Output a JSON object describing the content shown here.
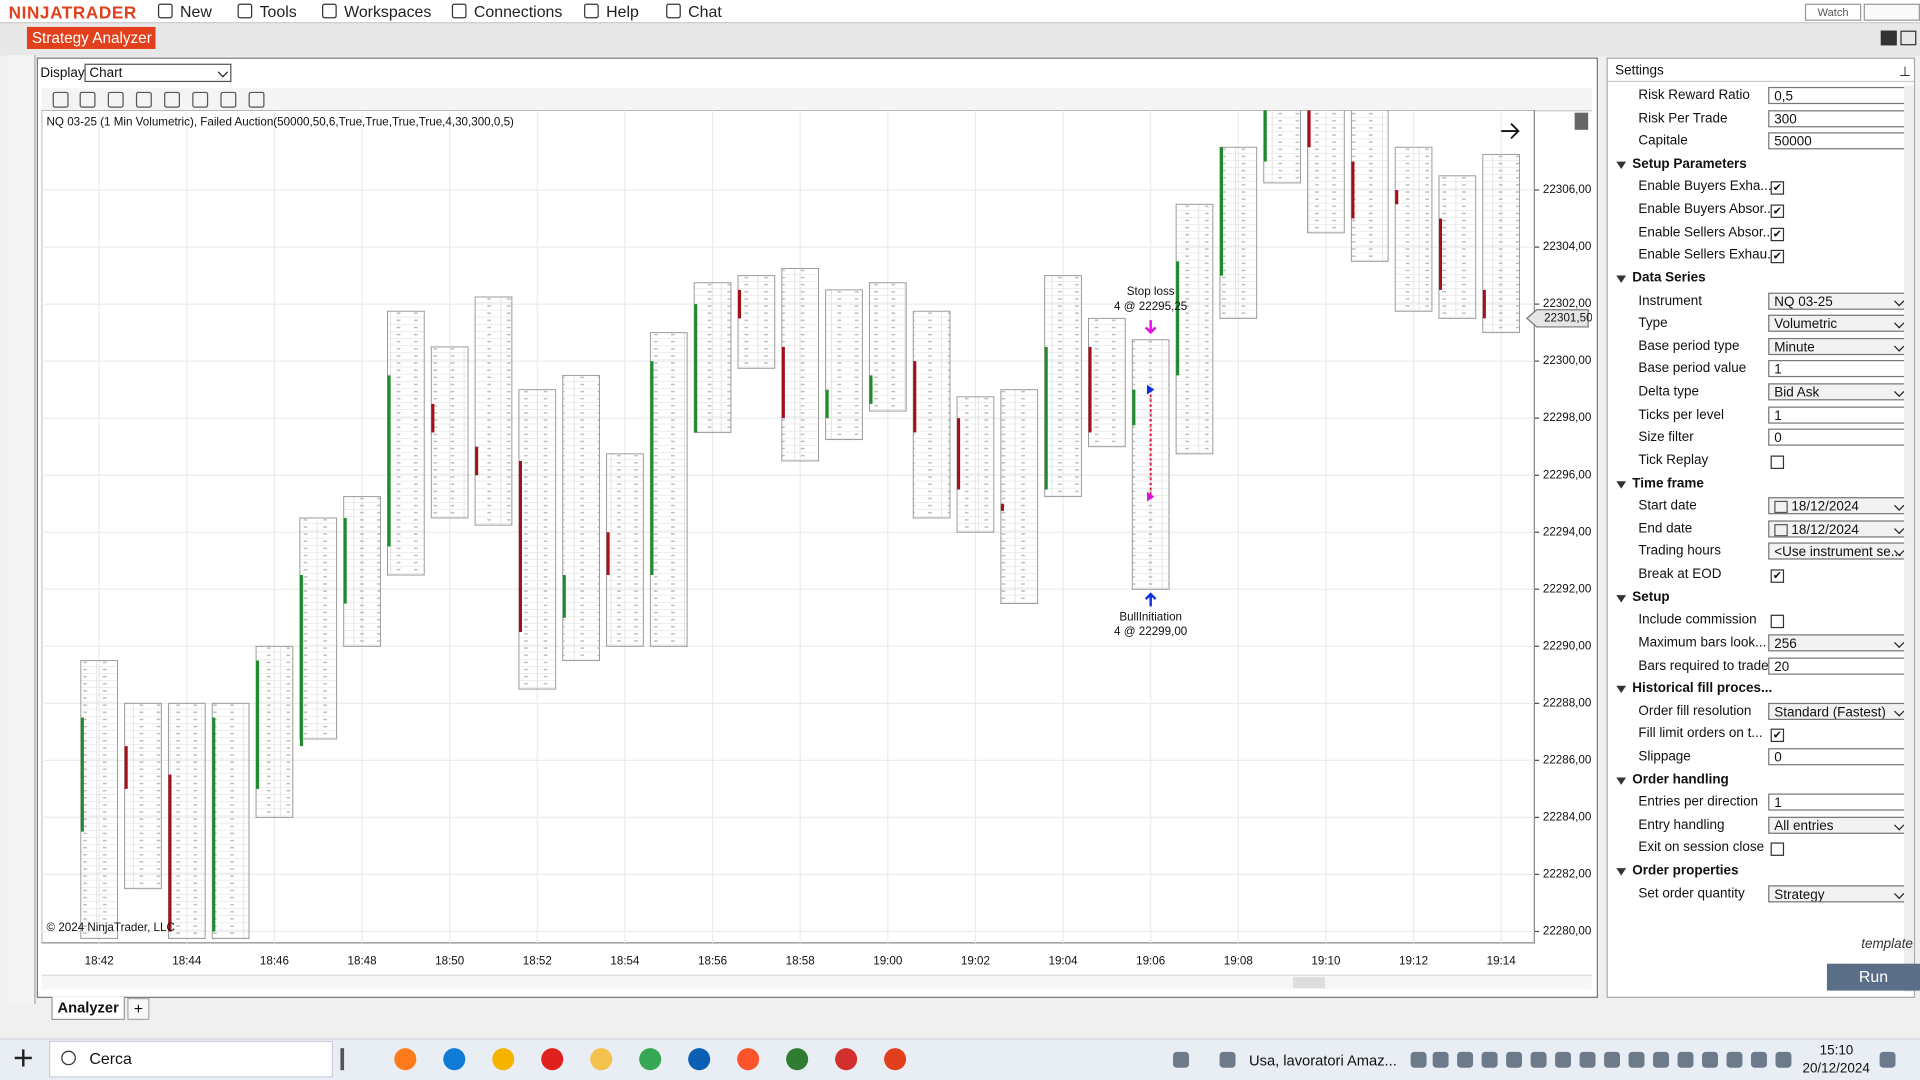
{
  "menu": {
    "logo": "NINJATRADER",
    "items": [
      "New",
      "Tools",
      "Workspaces",
      "Connections",
      "Help",
      "Chat"
    ],
    "watch": "Watch"
  },
  "window": {
    "tab": "Strategy Analyzer",
    "display_label": "Display",
    "display_value": "Chart",
    "bottom_tab": "Analyzer",
    "add_tab": "+"
  },
  "chart_data": {
    "type": "candlestick",
    "title": "NQ 03-25 (1 Min Volumetric), Failed Auction(50000,50,6,True,True,True,True,4,30,300,0,5)",
    "copyright": "© 2024 NinjaTrader, LLC",
    "grid": true,
    "categories": [
      "18:42",
      null,
      "18:44",
      null,
      "18:46",
      null,
      "18:48",
      null,
      "18:50",
      null,
      "18:52",
      null,
      "18:54",
      null,
      "18:56",
      null,
      "18:58",
      null,
      "19:00",
      null,
      "19:02",
      null,
      "19:04",
      null,
      "19:06",
      null,
      "19:08",
      null,
      "19:10",
      null,
      "19:12",
      null,
      "19:14"
    ],
    "candles": [
      {
        "high": 22289.5,
        "low": 22279.75,
        "open": 22283.5,
        "close": 22287.5
      },
      {
        "high": 22288,
        "low": 22281.5,
        "open": 22286.5,
        "close": 22285
      },
      {
        "high": 22288,
        "low": 22279.75,
        "open": 22285.5,
        "close": 22280
      },
      {
        "high": 22288,
        "low": 22279.75,
        "open": 22280,
        "close": 22287.5
      },
      {
        "high": 22290,
        "low": 22284,
        "open": 22285,
        "close": 22289.5
      },
      {
        "high": 22294.5,
        "low": 22286.75,
        "open": 22286.5,
        "close": 22292.5
      },
      {
        "high": 22295.25,
        "low": 22290,
        "open": 22291.5,
        "close": 22294.5
      },
      {
        "high": 22301.75,
        "low": 22292.5,
        "open": 22293.5,
        "close": 22299.5
      },
      {
        "high": 22300.5,
        "low": 22294.5,
        "open": 22298.5,
        "close": 22297.5
      },
      {
        "high": 22302.25,
        "low": 22294.25,
        "open": 22297,
        "close": 22296
      },
      {
        "high": 22299,
        "low": 22288.5,
        "open": 22296.5,
        "close": 22290.5
      },
      {
        "high": 22299.5,
        "low": 22289.5,
        "open": 22291,
        "close": 22292.5
      },
      {
        "high": 22296.75,
        "low": 22290,
        "open": 22294,
        "close": 22292.5
      },
      {
        "high": 22301,
        "low": 22290,
        "open": 22292.5,
        "close": 22300
      },
      {
        "high": 22302.75,
        "low": 22297.5,
        "open": 22297.5,
        "close": 22302
      },
      {
        "high": 22303,
        "low": 22299.75,
        "open": 22302.5,
        "close": 22301.5
      },
      {
        "high": 22303.25,
        "low": 22296.5,
        "open": 22300.5,
        "close": 22298
      },
      {
        "high": 22302.5,
        "low": 22297.25,
        "open": 22298,
        "close": 22299
      },
      {
        "high": 22302.75,
        "low": 22298.25,
        "open": 22298.5,
        "close": 22299.5
      },
      {
        "high": 22301.75,
        "low": 22294.5,
        "open": 22300,
        "close": 22297.5
      },
      {
        "high": 22298.75,
        "low": 22294,
        "open": 22298,
        "close": 22295.5
      },
      {
        "high": 22299,
        "low": 22291.5,
        "open": 22295,
        "close": 22294.75
      },
      {
        "high": 22303,
        "low": 22295.25,
        "open": 22295.5,
        "close": 22300.5
      },
      {
        "high": 22301.5,
        "low": 22297,
        "open": 22300.5,
        "close": 22297.5
      },
      {
        "high": 22300.75,
        "low": 22292,
        "open": 22297.75,
        "close": 22299
      },
      {
        "high": 22305.5,
        "low": 22296.75,
        "open": 22299.5,
        "close": 22303.5
      },
      {
        "high": 22307.5,
        "low": 22301.5,
        "open": 22303,
        "close": 22307.5
      },
      {
        "high": 22309,
        "low": 22306.25,
        "open": 22307,
        "close": 22309
      },
      {
        "high": 22309,
        "low": 22304.5,
        "open": 22309,
        "close": 22307.5
      },
      {
        "high": 22309,
        "low": 22303.5,
        "open": 22307,
        "close": 22305
      },
      {
        "high": 22307.5,
        "low": 22301.75,
        "open": 22306,
        "close": 22305.5
      },
      {
        "high": 22306.5,
        "low": 22301.5,
        "open": 22305,
        "close": 22302.5
      },
      {
        "high": 22307.25,
        "low": 22301,
        "open": 22302.5,
        "close": 22301.5
      }
    ],
    "ylim": [
      22279.6,
      22308.8
    ],
    "yticks": [
      {
        "value": 22280,
        "label": "22280,00"
      },
      {
        "value": 22282,
        "label": "22282,00"
      },
      {
        "value": 22284,
        "label": "22284,00"
      },
      {
        "value": 22286,
        "label": "22286,00"
      },
      {
        "value": 22288,
        "label": "22288,00"
      },
      {
        "value": 22290,
        "label": "22290,00"
      },
      {
        "value": 22292,
        "label": "22292,00"
      },
      {
        "value": 22294,
        "label": "22294,00"
      },
      {
        "value": 22296,
        "label": "22296,00"
      },
      {
        "value": 22298,
        "label": "22298,00"
      },
      {
        "value": 22300,
        "label": "22300,00"
      },
      {
        "value": 22302,
        "label": "22302,00"
      },
      {
        "value": 22304,
        "label": "22304,00"
      },
      {
        "value": 22306,
        "label": "22306,00"
      }
    ],
    "current_price": {
      "value": 22301.5,
      "label": "22301,50"
    },
    "annotations": [
      {
        "kind": "stop",
        "x": "19:06",
        "text": "Stop loss",
        "label": "4 @ 22295,25",
        "price": 22295.25
      },
      {
        "kind": "entry",
        "x": "19:06",
        "text": "BullInitiation",
        "label": "4 @ 22299,00",
        "price": 22299
      }
    ]
  },
  "settings": {
    "title": "Settings",
    "template": "template",
    "run": "Run",
    "groups": [
      {
        "rows": [
          {
            "label": "Risk Reward Ratio",
            "kind": "text",
            "value": "0,5"
          },
          {
            "label": "Risk Per Trade",
            "kind": "text",
            "value": "300"
          },
          {
            "label": "Capitale",
            "kind": "text",
            "value": "50000"
          }
        ]
      },
      {
        "title": "Setup Parameters",
        "rows": [
          {
            "label": "Enable Buyers Exha...",
            "kind": "check",
            "value": true
          },
          {
            "label": "Enable Buyers Absor...",
            "kind": "check",
            "value": true
          },
          {
            "label": "Enable Sellers Absor...",
            "kind": "check",
            "value": true
          },
          {
            "label": "Enable Sellers Exhau...",
            "kind": "check",
            "value": true
          }
        ]
      },
      {
        "title": "Data Series",
        "rows": [
          {
            "label": "Instrument",
            "kind": "dropdown",
            "value": "NQ 03-25"
          },
          {
            "label": "Type",
            "kind": "dropdown",
            "value": "Volumetric"
          },
          {
            "label": "Base period type",
            "kind": "dropdown",
            "value": "Minute"
          },
          {
            "label": "Base period value",
            "kind": "text",
            "value": "1"
          },
          {
            "label": "Delta type",
            "kind": "dropdown",
            "value": "Bid Ask"
          },
          {
            "label": "Ticks per level",
            "kind": "text",
            "value": "1"
          },
          {
            "label": "Size filter",
            "kind": "text",
            "value": "0"
          },
          {
            "label": "Tick Replay",
            "kind": "check",
            "value": false
          }
        ]
      },
      {
        "title": "Time frame",
        "rows": [
          {
            "label": "Start date",
            "kind": "date",
            "value": "18/12/2024"
          },
          {
            "label": "End date",
            "kind": "date",
            "value": "18/12/2024"
          },
          {
            "label": "Trading hours",
            "kind": "dropdown",
            "value": "<Use instrument se..."
          },
          {
            "label": "Break at EOD",
            "kind": "check",
            "value": true
          }
        ]
      },
      {
        "title": "Setup",
        "rows": [
          {
            "label": "Include commission",
            "kind": "check",
            "value": false
          },
          {
            "label": "Maximum bars look...",
            "kind": "dropdown",
            "value": "256"
          },
          {
            "label": "Bars required to trade",
            "kind": "text",
            "value": "20"
          }
        ]
      },
      {
        "title": "Historical fill proces...",
        "rows": [
          {
            "label": "Order fill resolution",
            "kind": "dropdown",
            "value": "Standard (Fastest)"
          },
          {
            "label": "Fill limit orders on t...",
            "kind": "check",
            "value": true
          },
          {
            "label": "Slippage",
            "kind": "text",
            "value": "0"
          }
        ]
      },
      {
        "title": "Order handling",
        "rows": [
          {
            "label": "Entries per direction",
            "kind": "text",
            "value": "1"
          },
          {
            "label": "Entry handling",
            "kind": "dropdown",
            "value": "All entries"
          },
          {
            "label": "Exit on session close",
            "kind": "check",
            "value": false
          }
        ]
      },
      {
        "title": "Order properties",
        "rows": [
          {
            "label": "Set order quantity",
            "kind": "dropdown",
            "value": "Strategy"
          }
        ]
      }
    ]
  },
  "taskbar": {
    "search": "Cerca",
    "notification": "Usa, lavoratori Amaz...",
    "time": "15:10",
    "date": "20/12/2024"
  }
}
